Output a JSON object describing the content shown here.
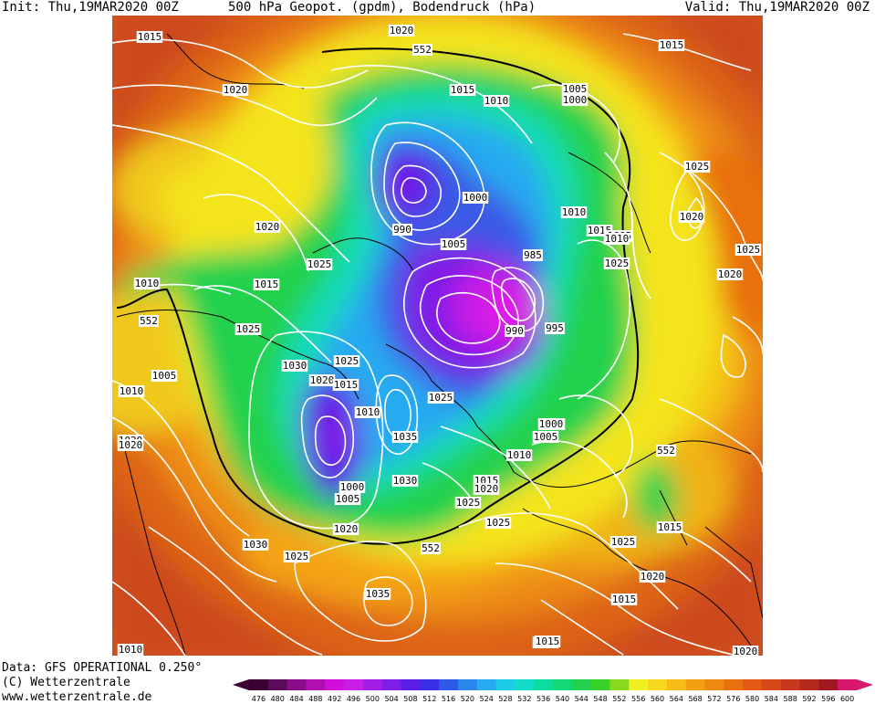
{
  "header": {
    "init": "Init: Thu,19MAR2020 00Z",
    "title": "500 hPa Geopot. (gpdm), Bodendruck (hPa)",
    "valid": "Valid: Thu,19MAR2020 00Z"
  },
  "footer": {
    "data_source": "Data: GFS OPERATIONAL 0.250°",
    "copyright": "(C) Wetterzentrale",
    "website": "www.wetterzentrale.de"
  },
  "colorbar": {
    "ticks": [
      "476",
      "480",
      "484",
      "488",
      "492",
      "496",
      "500",
      "504",
      "508",
      "512",
      "516",
      "520",
      "524",
      "528",
      "532",
      "536",
      "540",
      "544",
      "548",
      "552",
      "556",
      "560",
      "564",
      "568",
      "572",
      "576",
      "580",
      "584",
      "588",
      "592",
      "596",
      "600"
    ],
    "colors": [
      "#3b0033",
      "#5c0a5a",
      "#8a0c8a",
      "#b010b0",
      "#d010d8",
      "#c81ee6",
      "#a41ee6",
      "#7e1ee6",
      "#5a1ee6",
      "#3a2ee6",
      "#2c5ae6",
      "#2a86ec",
      "#26aaf0",
      "#1ecce8",
      "#12dcc8",
      "#0cdca0",
      "#12d878",
      "#22d24e",
      "#38d22a",
      "#8ad820",
      "#f0f020",
      "#f8d81c",
      "#f8bc18",
      "#f4a014",
      "#ee8810",
      "#e8700e",
      "#e25a14",
      "#d84818",
      "#c8381c",
      "#b4281c",
      "#a01820",
      "#d8186e"
    ]
  },
  "pressure_labels": [
    {
      "text": "1015"
    },
    {
      "text": "1020"
    },
    {
      "text": "1015"
    },
    {
      "text": "1020"
    },
    {
      "text": "552"
    },
    {
      "text": "1015"
    },
    {
      "text": "1010"
    },
    {
      "text": "1005"
    },
    {
      "text": "1000"
    },
    {
      "text": "1025"
    },
    {
      "text": "1020"
    },
    {
      "text": "1025"
    },
    {
      "text": "1020"
    },
    {
      "text": "1010"
    },
    {
      "text": "1015"
    },
    {
      "text": "1025"
    },
    {
      "text": "1005"
    },
    {
      "text": "985"
    },
    {
      "text": "990"
    },
    {
      "text": "995"
    },
    {
      "text": "1000"
    },
    {
      "text": "1005"
    },
    {
      "text": "1010"
    },
    {
      "text": "990"
    },
    {
      "text": "1020"
    },
    {
      "text": "1025"
    },
    {
      "text": "1015"
    },
    {
      "text": "1010"
    },
    {
      "text": "552"
    },
    {
      "text": "1025"
    },
    {
      "text": "1005"
    },
    {
      "text": "1010"
    },
    {
      "text": "1030"
    },
    {
      "text": "1020"
    },
    {
      "text": "1015"
    },
    {
      "text": "1025"
    },
    {
      "text": "1025"
    },
    {
      "text": "1010"
    },
    {
      "text": "1035"
    },
    {
      "text": "1020"
    },
    {
      "text": "1000"
    },
    {
      "text": "1005"
    },
    {
      "text": "1030"
    },
    {
      "text": "1015"
    },
    {
      "text": "1020"
    },
    {
      "text": "1025"
    },
    {
      "text": "1010"
    },
    {
      "text": "1000"
    },
    {
      "text": "1005"
    },
    {
      "text": "552"
    },
    {
      "text": "1015"
    },
    {
      "text": "1025"
    },
    {
      "text": "1025"
    },
    {
      "text": "1030"
    },
    {
      "text": "1020"
    },
    {
      "text": "1025"
    },
    {
      "text": "552"
    },
    {
      "text": "1020"
    },
    {
      "text": "1035"
    },
    {
      "text": "1015"
    },
    {
      "text": "1020"
    },
    {
      "text": "1010"
    },
    {
      "text": "1015"
    },
    {
      "text": "1015"
    },
    {
      "text": "1000"
    },
    {
      "text": "1020"
    }
  ],
  "legend_colors": {
    "warm": "#d2521e",
    "coast": "#000000",
    "isobar": "#ffffff",
    "line_552": "#000000"
  }
}
